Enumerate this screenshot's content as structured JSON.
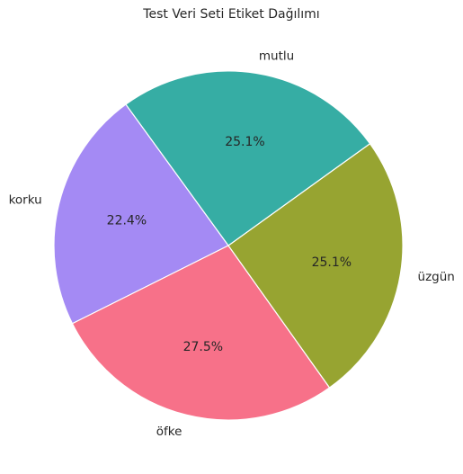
{
  "chart_data": {
    "type": "pie",
    "title": "Test Veri Seti Etiket Dağılımı",
    "start_angle_deg": 126,
    "direction": "counterclockwise",
    "slices": [
      {
        "label": "korku",
        "value": 22.4,
        "pct_label": "22.4%",
        "color": "#a48af4"
      },
      {
        "label": "öfke",
        "value": 27.5,
        "pct_label": "27.5%",
        "color": "#f77189"
      },
      {
        "label": "üzgün",
        "value": 25.1,
        "pct_label": "25.1%",
        "color": "#97a431"
      },
      {
        "label": "mutlu",
        "value": 25.1,
        "pct_label": "25.1%",
        "color": "#36ada4"
      }
    ],
    "edge_color": "#ffffff"
  }
}
